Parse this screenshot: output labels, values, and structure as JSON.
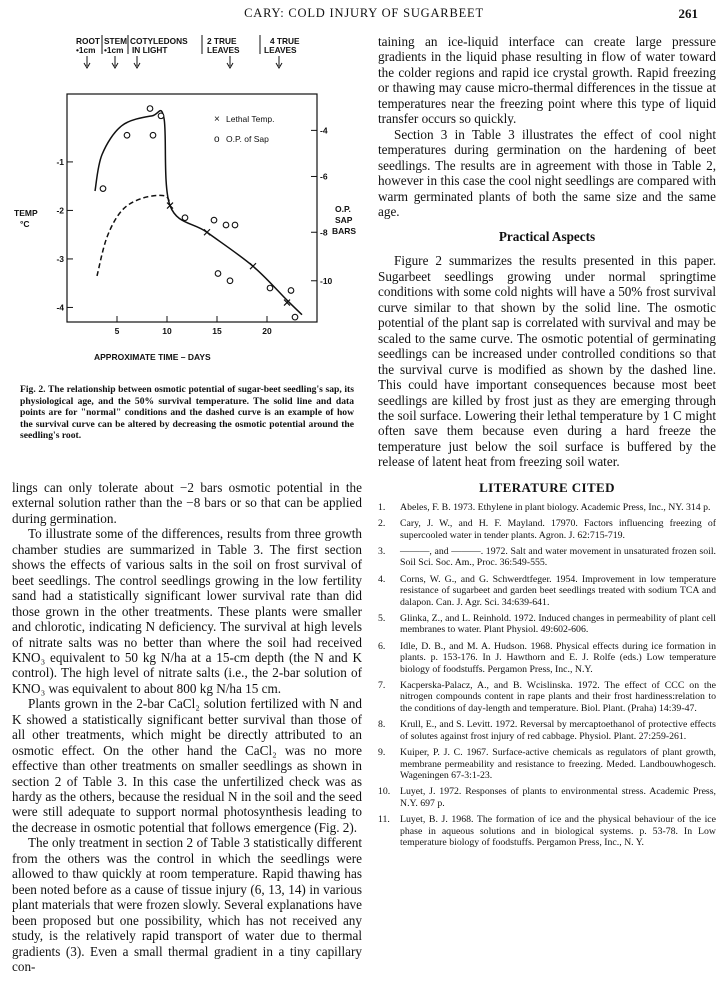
{
  "header": {
    "running_title": "CARY: COLD INJURY OF SUGARBEET",
    "page_number": "261"
  },
  "figure": {
    "top_labels": [
      "ROOT",
      "•1cm",
      "STEM",
      "•1cm",
      "COTYLEDONS",
      "IN LIGHT",
      "2 TRUE",
      "LEAVES",
      "4 TRUE",
      "LEAVES"
    ],
    "legend": [
      {
        "marker": "×",
        "label": "Lethal Temp."
      },
      {
        "marker": "o",
        "label": "O.P. of Sap"
      }
    ],
    "left_axis_title": [
      "TEMP",
      "°C"
    ],
    "right_axis_title": [
      "O.P.",
      "SAP",
      "BARS"
    ],
    "left_ticks": [
      "-1",
      "-2",
      "-3",
      "-4"
    ],
    "right_ticks": [
      "-4",
      "-6",
      "-8",
      "-10"
    ],
    "x_ticks": [
      "5",
      "10",
      "15",
      "20"
    ],
    "x_axis_title": "APPROXIMATE TIME – DAYS",
    "caption_lead": "Fig. 2.",
    "caption_text": "The relationship between osmotic potential of sugar-beet seedling's sap, its physiological age, and the 50% survival temperature. The solid line and data points are for \"normal\" conditions and the dashed curve is an example of how the survival curve can be altered by decreasing the osmotic potential around the seedling's root."
  },
  "chart_data": {
    "type": "scatter",
    "title": "",
    "xlabel": "APPROXIMATE TIME – DAYS",
    "ylabel": "TEMP °C",
    "y2label": "O.P. SAP BARS",
    "xlim": [
      0,
      25
    ],
    "ylim": [
      -4.3,
      0.4
    ],
    "x_ticks": [
      5,
      10,
      15,
      20
    ],
    "y_ticks": [
      -1,
      -2,
      -3,
      -4
    ],
    "y2_ticks": [
      -4,
      -6,
      -8,
      -10
    ],
    "series": [
      {
        "name": "Lethal Temp.",
        "marker": "x",
        "points": [
          [
            10.3,
            -1.9
          ],
          [
            14.0,
            -2.45
          ],
          [
            18.6,
            -3.15
          ],
          [
            22.0,
            -3.9
          ]
        ]
      },
      {
        "name": "O.P. of Sap",
        "marker": "o",
        "points": [
          [
            3.6,
            -1.55
          ],
          [
            6.0,
            -0.45
          ],
          [
            8.3,
            0.1
          ],
          [
            8.6,
            -0.45
          ],
          [
            9.4,
            -0.05
          ],
          [
            11.8,
            -2.15
          ],
          [
            14.7,
            -2.2
          ],
          [
            15.9,
            -2.3
          ],
          [
            16.8,
            -2.3
          ],
          [
            15.1,
            -3.3
          ],
          [
            16.3,
            -3.45
          ],
          [
            20.3,
            -3.6
          ],
          [
            22.4,
            -3.65
          ],
          [
            22.8,
            -4.2
          ]
        ]
      }
    ],
    "curves": [
      {
        "style": "solid",
        "points": [
          [
            2.8,
            -1.6
          ],
          [
            3.5,
            -0.85
          ],
          [
            5.5,
            -0.25
          ],
          [
            8.5,
            -0.05
          ],
          [
            9.7,
            -0.1
          ],
          [
            10.3,
            -1.9
          ],
          [
            14,
            -2.45
          ],
          [
            18.6,
            -3.15
          ],
          [
            22,
            -3.85
          ],
          [
            23.5,
            -4.15
          ]
        ]
      },
      {
        "style": "dashed",
        "points": [
          [
            3.0,
            -3.35
          ],
          [
            4,
            -2.55
          ],
          [
            5.5,
            -2.0
          ],
          [
            7.5,
            -1.75
          ],
          [
            9.8,
            -1.7
          ],
          [
            10.3,
            -1.9
          ]
        ]
      }
    ]
  },
  "left_column": {
    "paragraphs": [
      "lings can only tolerate about −2 bars osmotic potential in the external solution rather than the −8 bars or so that can be applied during germination.",
      "To illustrate some of the differences, results from three growth chamber studies are summarized in Table 3. The first section shows the effects of various salts in the soil on frost survival of beet seedlings. The control seedlings growing in the low fertility sand had a statistically significant lower survival rate than did those grown in the other treatments. These plants were smaller and chlorotic, indicating N deficiency. The survival at high levels of nitrate salts was no better than where the soil had received KNO₃ equivalent to 50 kg N/ha at a 15-cm depth (the N and K control). The high level of nitrate salts (i.e., the 2-bar solution of KNO₃ was equivalent to about 800 kg N/ha 15 cm.",
      "Plants grown in the 2-bar CaCl₂ solution fertilized with N and K showed a statistically significant better survival than those of all other treatments, which might be directly attributed to an osmotic effect. On the other hand the CaCl₂ was no more effective than other treatments on smaller seedlings as shown in section 2 of Table 3. In this case the unfertilized check was as hardy as the others, because the residual N in the soil and the seed were still adequate to support normal photosynthesis leading to the decrease in osmotic potential that follows emergence (Fig. 2).",
      "The only treatment in section 2 of Table 3 statistically different from the others was the control in which the seedlings were allowed to thaw quickly at room temperature. Rapid thawing has been noted before as a cause of tissue injury (6, 13, 14) in various plant materials that were frozen slowly. Several explanations have been proposed but one possibility, which has not received any study, is the relatively rapid transport of water due to thermal gradients (3). Even a small thermal gradient in a tiny capillary con-"
    ]
  },
  "right_column": {
    "paragraphs": [
      "taining an ice-liquid interface can create large pressure gradients in the liquid phase resulting in flow of water toward the colder regions and rapid ice crystal growth. Rapid freezing or thawing may cause micro-thermal differences in the tissue at temperatures near the freezing point where this type of liquid transfer occurs so quickly.",
      "Section 3 in Table 3 illustrates the effect of cool night temperatures during germination on the hardening of beet seedlings. The results are in agreement with those in Table 2, however in this case the cool night seedlings are compared with warm germinated plants of both the same size and the same age."
    ],
    "section_heading": "Practical Aspects",
    "section_paragraph": "Figure 2 summarizes the results presented in this paper. Sugarbeet seedlings growing under normal springtime conditions with some cold nights will have a 50% frost survival curve similar to that shown by the solid line. The osmotic potential of the plant sap is correlated with survival and may be scaled to the same curve. The osmotic potential of germinating seedlings can be increased under controlled conditions so that the survival curve is modified as shown by the dashed line. This could have important consequences because most beet seedlings are killed by frost just as they are emerging through the soil surface. Lowering their lethal temperature by 1 C might often save them because even during a hard freeze the temperature just below the soil surface is buffered by the release of latent heat from freezing soil water.",
    "lit_heading": "LITERATURE CITED",
    "references": [
      {
        "n": "1.",
        "text": "Abeles, F. B. 1973. Ethylene in plant biology. Academic Press, Inc., NY. 314 p."
      },
      {
        "n": "2.",
        "text": "Cary, J. W., and H. F. Mayland. 17970. Factors influencing freezing of supercooled water in tender plants. Agron. J. 62:715-719."
      },
      {
        "n": "3.",
        "text": "———, and ———. 1972. Salt and water movement in unsaturated frozen soil. Soil Sci. Soc. Am., Proc. 36:549-555."
      },
      {
        "n": "4.",
        "text": "Corns, W. G., and G. Schwerdtfeger. 1954. Improvement in low temperature resistance of sugarbeet and garden beet seedlings treated with sodium TCA and dalapon. Can. J. Agr. Sci. 34:639-641."
      },
      {
        "n": "5.",
        "text": "Glinka, Z., and L. Reinhold. 1972. Induced changes in permeability of plant cell membranes to water. Plant Physiol. 49:602-606."
      },
      {
        "n": "6.",
        "text": "Idle, D. B., and M. A. Hudson. 1968. Physical effects during ice formation in plants. p. 153-176. In J. Hawthorn and E. J. Rolfe (eds.) Low temperature biology of foodstuffs. Pergamon Press, Inc., N.Y."
      },
      {
        "n": "7.",
        "text": "Kacperska-Palacz, A., and B. Wcislinska. 1972. The effect of CCC on the nitrogen compounds content in rape plants and their frost hardiness:relation to the conditions of day-length and temperature. Biol. Plant. (Praha) 14:39-47."
      },
      {
        "n": "8.",
        "text": "Krull, E., and S. Levitt. 1972. Reversal by mercaptoethanol of protective effects of solutes against frost injury of red cabbage. Physiol. Plant. 27:259-261."
      },
      {
        "n": "9.",
        "text": "Kuiper, P. J. C. 1967. Surface-active chemicals as regulators of plant growth, membrane permeability and resistance to freezing. Meded. Landbouwhogesch. Wageningen 67-3:1-23."
      },
      {
        "n": "10.",
        "text": "Luyet, J. 1972. Responses of plants to environmental stress. Academic Press, N.Y. 697 p."
      },
      {
        "n": "11.",
        "text": "Luyet, B. J. 1968. The formation of ice and the physical behaviour of the ice phase in aqueous solutions and in biological systems. p. 53-78. In Low temperature biology of foodstuffs. Pergamon Press, Inc., N. Y."
      }
    ]
  }
}
